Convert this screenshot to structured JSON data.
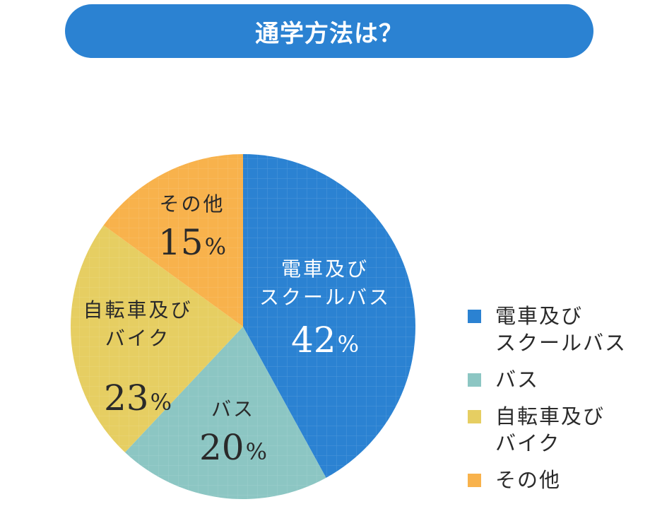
{
  "title": "通学方法は？",
  "colors": {
    "title_bg": "#2b82d2",
    "train": "#2b82d2",
    "bus": "#8cc6c3",
    "bike": "#e6ce62",
    "other": "#f8b24c"
  },
  "chart_data": {
    "type": "pie",
    "title": "通学方法は？",
    "slices": [
      {
        "label_lines": [
          "電車及び",
          "スクールバス"
        ],
        "value": 42,
        "value_text": "42",
        "unit": "%",
        "color": "#2b82d2",
        "text_color": "#ffffff"
      },
      {
        "label_lines": [
          "バス"
        ],
        "value": 20,
        "value_text": "20",
        "unit": "%",
        "color": "#8cc6c3",
        "text_color": "#2a2a2a"
      },
      {
        "label_lines": [
          "自転車及び",
          "バイク"
        ],
        "value": 23,
        "value_text": "23",
        "unit": "%",
        "color": "#e6ce62",
        "text_color": "#2a2a2a"
      },
      {
        "label_lines": [
          "その他"
        ],
        "value": 15,
        "value_text": "15",
        "unit": "%",
        "color": "#f8b24c",
        "text_color": "#2a2a2a"
      }
    ],
    "legend_placement": "right",
    "grid_pattern": true
  },
  "legend": [
    {
      "lines": [
        "電車及び",
        "スクールバス"
      ],
      "color": "#2b82d2"
    },
    {
      "lines": [
        "バス"
      ],
      "color": "#8cc6c3"
    },
    {
      "lines": [
        "自転車及び",
        "バイク"
      ],
      "color": "#e6ce62"
    },
    {
      "lines": [
        "その他"
      ],
      "color": "#f8b24c"
    }
  ]
}
